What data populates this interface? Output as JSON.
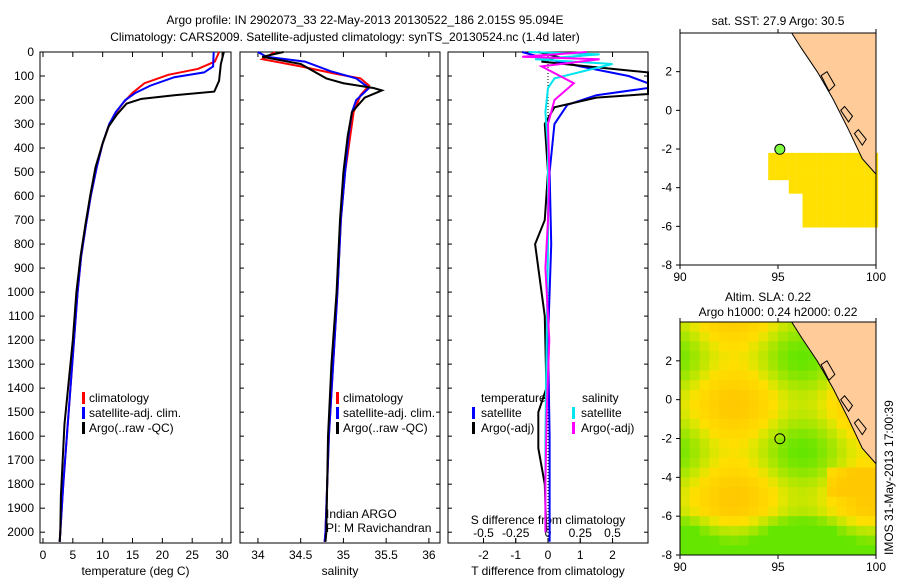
{
  "title": {
    "line1": "Argo profile: IN 2902073_33 22-May-2013 20130522_186 2.015S 95.094E",
    "line2": "Climatology: CARS2009. Satellite-adjusted climatology: synTS_20130524.nc (1.4d later)"
  },
  "colors": {
    "climatology": "#ff0000",
    "satellite": "#0000ff",
    "argo": "#000000",
    "sal_satellite": "#00e5ee",
    "sal_argo": "#ff00ff",
    "land": "#ffcc99"
  },
  "chart_data": [
    {
      "type": "line",
      "name": "temperature",
      "xlabel": "temperature (deg C)",
      "xlim": [
        -0.5,
        31.5
      ],
      "ylim": [
        2045,
        0
      ],
      "xticks": [
        0,
        5,
        10,
        15,
        20,
        25,
        30
      ],
      "yticks": [
        0,
        100,
        200,
        300,
        400,
        500,
        600,
        700,
        800,
        900,
        1000,
        1100,
        1200,
        1300,
        1400,
        1500,
        1600,
        1700,
        1800,
        1900,
        2000
      ],
      "legend": [
        "climatology",
        "satellite-adj. clim.",
        "Argo(..raw -QC)"
      ],
      "series": [
        {
          "name": "climatology",
          "points": [
            [
              29.5,
              0
            ],
            [
              28.8,
              40
            ],
            [
              26,
              70
            ],
            [
              21,
              95
            ],
            [
              17,
              130
            ],
            [
              15,
              170
            ],
            [
              13.5,
              210
            ],
            [
              12,
              260
            ],
            [
              11,
              310
            ],
            [
              10,
              380
            ],
            [
              9,
              480
            ],
            [
              8,
              600
            ],
            [
              7.2,
              720
            ],
            [
              6.4,
              850
            ],
            [
              5.8,
              1000
            ],
            [
              5.2,
              1200
            ],
            [
              4.6,
              1400
            ],
            [
              4,
              1600
            ],
            [
              3.4,
              1800
            ],
            [
              2.9,
              2000
            ],
            [
              2.8,
              2040
            ]
          ]
        },
        {
          "name": "satellite",
          "points": [
            [
              28.6,
              0
            ],
            [
              28.5,
              60
            ],
            [
              27,
              85
            ],
            [
              22,
              105
            ],
            [
              18,
              140
            ],
            [
              15.5,
              170
            ],
            [
              13.8,
              200
            ],
            [
              12.2,
              250
            ],
            [
              11.1,
              300
            ],
            [
              10,
              380
            ],
            [
              9,
              480
            ],
            [
              8,
              600
            ],
            [
              7.2,
              720
            ],
            [
              6.4,
              850
            ],
            [
              5.8,
              1000
            ],
            [
              5.2,
              1200
            ],
            [
              4.6,
              1400
            ],
            [
              4,
              1600
            ],
            [
              3.4,
              1800
            ],
            [
              2.9,
              2000
            ],
            [
              2.8,
              2040
            ]
          ]
        },
        {
          "name": "argo",
          "points": [
            [
              30.3,
              0
            ],
            [
              29.8,
              50
            ],
            [
              29.5,
              120
            ],
            [
              28.7,
              165
            ],
            [
              22,
              180
            ],
            [
              16.5,
              195
            ],
            [
              14,
              215
            ],
            [
              12.4,
              260
            ],
            [
              11,
              310
            ],
            [
              10,
              380
            ],
            [
              8.8,
              480
            ],
            [
              7.9,
              600
            ],
            [
              7.1,
              720
            ],
            [
              6.3,
              850
            ],
            [
              5.6,
              1000
            ],
            [
              5,
              1200
            ],
            [
              4.2,
              1400
            ],
            [
              3.6,
              1550
            ],
            [
              3.3,
              1700
            ],
            [
              3,
              1850
            ],
            [
              2.9,
              2000
            ],
            [
              2.8,
              2040
            ]
          ]
        }
      ]
    },
    {
      "type": "line",
      "name": "salinity",
      "xlabel": "salinity",
      "xlim": [
        33.79,
        36.13
      ],
      "ylim": [
        2045,
        0
      ],
      "xticks": [
        34,
        34.5,
        35,
        35.5,
        36
      ],
      "legend": [
        "climatology",
        "satellite-adj. clim.",
        "Argo(..raw -QC)"
      ],
      "annotation": [
        "Indian ARGO",
        "PI: M Ravichandran"
      ],
      "series": [
        {
          "name": "climatology",
          "points": [
            [
              34.2,
              0
            ],
            [
              34.05,
              30
            ],
            [
              34.5,
              60
            ],
            [
              34.9,
              90
            ],
            [
              35.2,
              110
            ],
            [
              35.3,
              140
            ],
            [
              35.2,
              180
            ],
            [
              35.12,
              250
            ],
            [
              35.08,
              350
            ],
            [
              35.02,
              500
            ],
            [
              34.97,
              700
            ],
            [
              34.93,
              1000
            ],
            [
              34.88,
              1300
            ],
            [
              34.83,
              1600
            ],
            [
              34.79,
              2000
            ],
            [
              34.78,
              2040
            ]
          ]
        },
        {
          "name": "satellite",
          "points": [
            [
              34.0,
              0
            ],
            [
              34.1,
              20
            ],
            [
              34.55,
              40
            ],
            [
              34.85,
              80
            ],
            [
              35.15,
              110
            ],
            [
              35.3,
              150
            ],
            [
              35.15,
              200
            ],
            [
              35.1,
              250
            ],
            [
              35.06,
              350
            ],
            [
              35.02,
              500
            ],
            [
              34.97,
              700
            ],
            [
              34.93,
              1000
            ],
            [
              34.88,
              1300
            ],
            [
              34.83,
              1600
            ],
            [
              34.79,
              2000
            ],
            [
              34.78,
              2040
            ]
          ]
        },
        {
          "name": "argo",
          "points": [
            [
              34.3,
              0
            ],
            [
              34.05,
              20
            ],
            [
              34.5,
              50
            ],
            [
              34.8,
              110
            ],
            [
              35.0,
              130
            ],
            [
              35.35,
              150
            ],
            [
              35.45,
              160
            ],
            [
              35.25,
              190
            ],
            [
              35.1,
              250
            ],
            [
              35.05,
              350
            ],
            [
              35.0,
              500
            ],
            [
              34.96,
              700
            ],
            [
              34.92,
              1000
            ],
            [
              34.86,
              1300
            ],
            [
              34.82,
              1600
            ],
            [
              34.8,
              2000
            ],
            [
              34.79,
              2040
            ]
          ]
        }
      ]
    },
    {
      "type": "line",
      "name": "differences",
      "xlabel": "T difference from climatology",
      "xlabel2": "S difference from climatology",
      "xlim": [
        -3.1,
        3.1
      ],
      "ylim": [
        2045,
        0
      ],
      "xticks": [
        -2,
        -1,
        0,
        1,
        2
      ],
      "xticks2": [
        -0.5,
        -0.25,
        0,
        0.25,
        0.5
      ],
      "xticks2_labels": [
        "-0.5",
        "-0.25",
        "0",
        "0.25",
        "0.5"
      ],
      "legend_t_title": "temperature",
      "legend_s_title": "salinity",
      "legend": [
        "satellite",
        "Argo(-adj)",
        "satellite",
        "Argo(-adj)"
      ],
      "series": [
        {
          "name": "T satellite",
          "unit": "T",
          "points": [
            [
              -0.8,
              0
            ],
            [
              0,
              30
            ],
            [
              1,
              60
            ],
            [
              2.5,
              100
            ],
            [
              3.1,
              130
            ],
            [
              3.1,
              150
            ],
            [
              1.5,
              180
            ],
            [
              0.6,
              220
            ],
            [
              0.2,
              300
            ],
            [
              0.05,
              500
            ],
            [
              0.1,
              800
            ],
            [
              0,
              1200
            ],
            [
              0.05,
              1600
            ],
            [
              0.05,
              2000
            ],
            [
              0.05,
              2040
            ]
          ]
        },
        {
          "name": "T argo",
          "unit": "T",
          "points": [
            [
              -0.3,
              0
            ],
            [
              0.3,
              20
            ],
            [
              -0.2,
              40
            ],
            [
              0.5,
              50
            ],
            [
              3.1,
              85
            ],
            [
              3.1,
              100
            ],
            [
              3.1,
              175
            ],
            [
              1.5,
              190
            ],
            [
              0.2,
              230
            ],
            [
              -0.1,
              300
            ],
            [
              0,
              500
            ],
            [
              -0.1,
              700
            ],
            [
              -0.4,
              800
            ],
            [
              -0.3,
              900
            ],
            [
              -0.1,
              1100
            ],
            [
              -0.05,
              1400
            ],
            [
              -0.3,
              1500
            ],
            [
              -0.3,
              1650
            ],
            [
              -0.1,
              1800
            ],
            [
              -0.05,
              2000
            ]
          ]
        },
        {
          "name": "S satellite",
          "unit": "S",
          "points": [
            [
              -0.15,
              0
            ],
            [
              0.4,
              10
            ],
            [
              -0.1,
              30
            ],
            [
              0.5,
              50
            ],
            [
              0.05,
              110
            ],
            [
              0.0,
              150
            ],
            [
              -0.02,
              250
            ],
            [
              0,
              400
            ],
            [
              0,
              800
            ],
            [
              -0.01,
              1200
            ],
            [
              -0.02,
              1600
            ],
            [
              -0.02,
              2000
            ]
          ]
        },
        {
          "name": "S argo",
          "unit": "S",
          "points": [
            [
              0.3,
              0
            ],
            [
              -0.2,
              20
            ],
            [
              0.4,
              30
            ],
            [
              -0.05,
              60
            ],
            [
              0.2,
              130
            ],
            [
              0.05,
              200
            ],
            [
              0.0,
              300
            ],
            [
              0.01,
              500
            ],
            [
              0,
              700
            ],
            [
              -0.02,
              900
            ],
            [
              0.01,
              1200
            ],
            [
              -0.01,
              1500
            ],
            [
              -0.02,
              1800
            ],
            [
              -0.02,
              2000
            ]
          ]
        }
      ]
    }
  ],
  "map_sst": {
    "title": "sat. SST: 27.9 Argo: 30.5",
    "xticks": [
      90,
      95,
      100
    ],
    "yticks": [
      2,
      0,
      -2,
      -4,
      -6,
      -8
    ],
    "argo_position": [
      95.094,
      -2.015
    ]
  },
  "map_sla": {
    "title1": "Altim. SLA: 0.22",
    "title2": "Argo h1000: 0.24 h2000: 0.22",
    "xticks": [
      90,
      95,
      100
    ],
    "yticks": [
      2,
      0,
      -2,
      -4,
      -6,
      -8
    ],
    "argo_position": [
      95.094,
      -2.015
    ]
  },
  "footer": "IMOS 31-May-2013 17:00:39"
}
